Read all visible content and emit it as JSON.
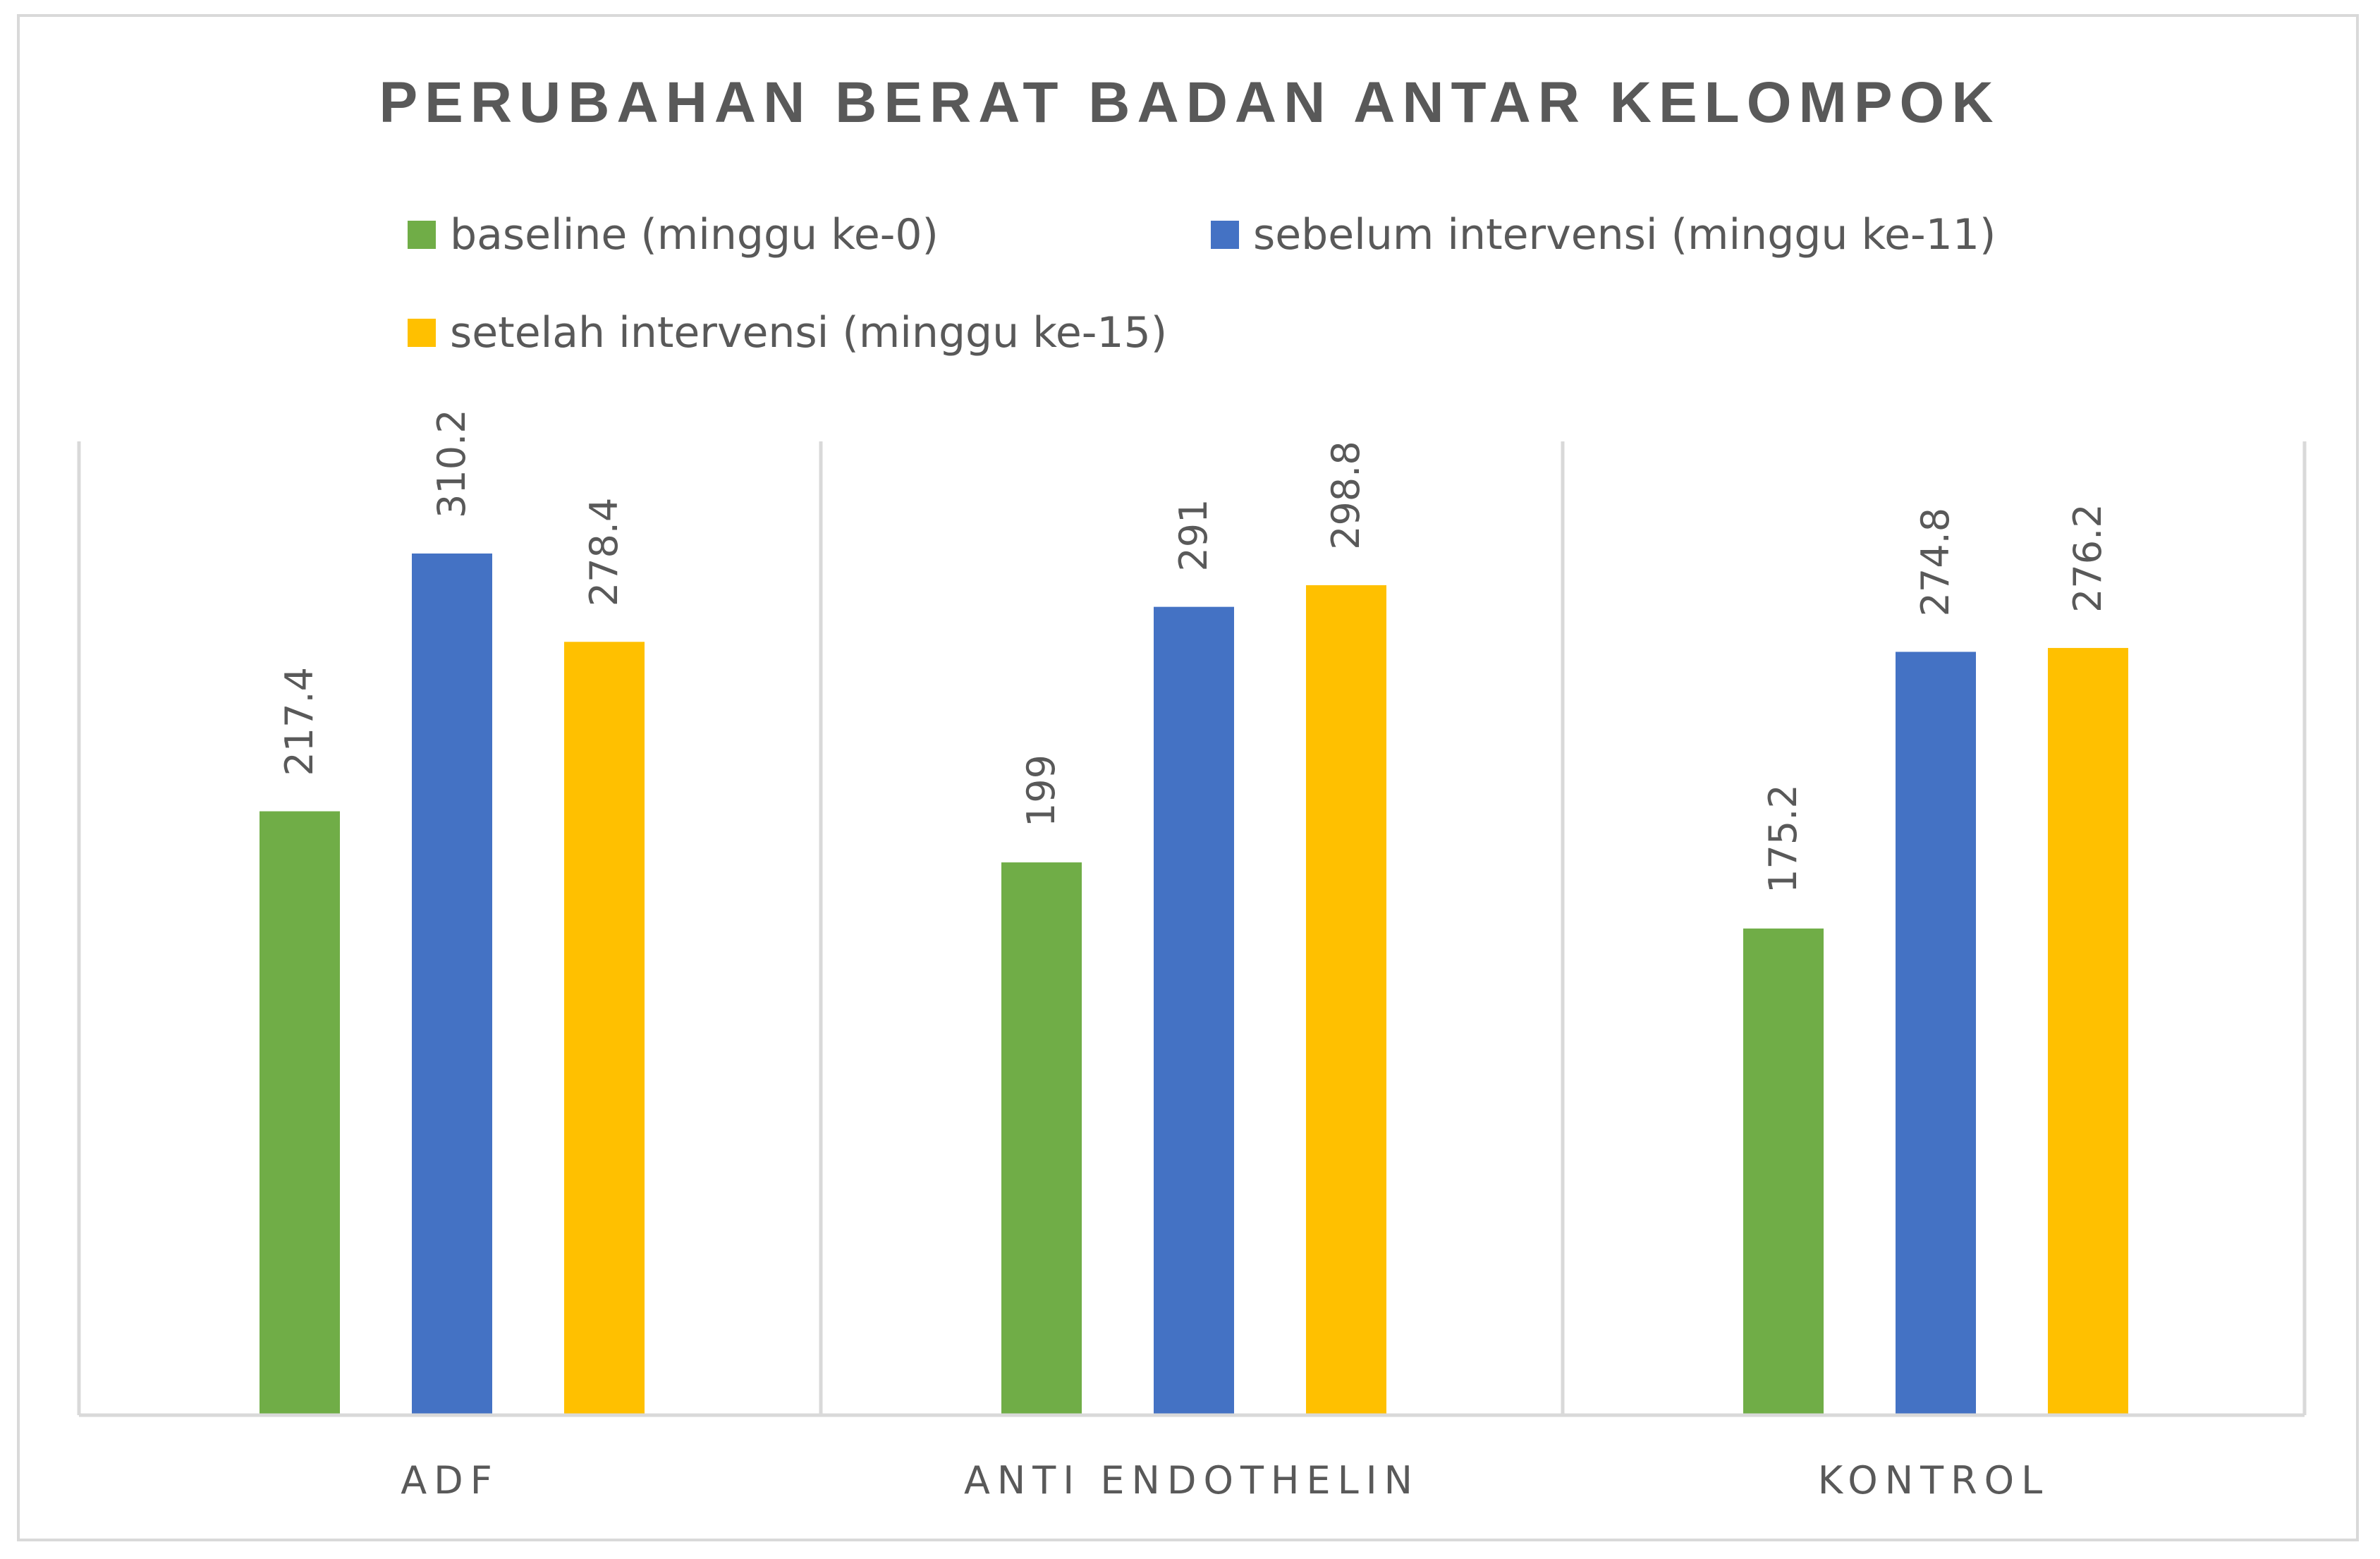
{
  "chart_data": {
    "type": "bar",
    "title": "PERUBAHAN BERAT BADAN ANTAR KELOMPOK",
    "categories": [
      "ADF",
      "ANTI ENDOTHELIN",
      "KONTROL"
    ],
    "series": [
      {
        "name": "baseline (minggu ke-0)",
        "color": "#70ad47",
        "values": [
          217.4,
          199,
          175.2
        ],
        "labels": [
          "217.4",
          "199",
          "175.2"
        ]
      },
      {
        "name": "sebelum intervensi (minggu ke-11)",
        "color": "#4472c4",
        "values": [
          310.2,
          291,
          274.8
        ],
        "labels": [
          "310.2",
          "291",
          "274.8"
        ]
      },
      {
        "name": "setelah intervensi (minggu ke-15)",
        "color": "#ffc000",
        "values": [
          278.4,
          298.8,
          276.2
        ],
        "labels": [
          "278.4",
          "298.8",
          "276.2"
        ]
      }
    ],
    "ylim": [
      0,
      350
    ],
    "grid": false,
    "legend_position": "top",
    "data_labels": "rotated"
  }
}
